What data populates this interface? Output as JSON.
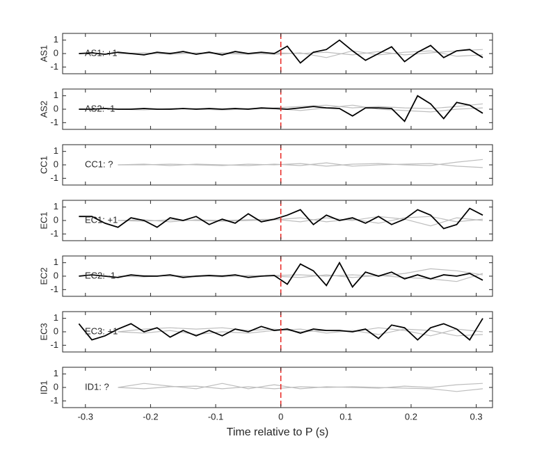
{
  "chart_data": [
    {
      "type": "line",
      "ylabel": "AS1",
      "annotation": {
        "text": "AS1: +1",
        "color": "#c0141e"
      },
      "xlim": [
        -0.335,
        0.325
      ],
      "ylim": [
        -1.5,
        1.5
      ],
      "yticks": [
        -1,
        0,
        1
      ],
      "vline": {
        "x": 0,
        "color": "#e8231f"
      },
      "series": [
        {
          "color": "#bdbdbd",
          "x": [
            -0.25,
            -0.21,
            -0.17,
            -0.13,
            -0.09,
            -0.05,
            -0.01,
            0.03,
            0.07,
            0.11,
            0.15,
            0.19,
            0.23,
            0.27,
            0.31
          ],
          "values": [
            0,
            0.05,
            -0.05,
            0.05,
            0,
            -0.05,
            0.05,
            0,
            0.1,
            -0.1,
            0.15,
            -0.1,
            0.05,
            0.2,
            0.3
          ]
        },
        {
          "color": "#bdbdbd",
          "x": [
            -0.25,
            -0.21,
            -0.17,
            -0.13,
            -0.09,
            -0.05,
            -0.01,
            0.03,
            0.07,
            0.11,
            0.15,
            0.19,
            0.23,
            0.27,
            0.31
          ],
          "values": [
            0,
            -0.05,
            0.05,
            0,
            0.05,
            0,
            -0.05,
            0.05,
            -0.3,
            0.2,
            -0.1,
            0.1,
            0.2,
            -0.2,
            -0.1
          ]
        },
        {
          "color": "#000000",
          "x": [
            -0.31,
            -0.29,
            -0.27,
            -0.25,
            -0.23,
            -0.21,
            -0.19,
            -0.17,
            -0.15,
            -0.13,
            -0.11,
            -0.09,
            -0.07,
            -0.05,
            -0.03,
            -0.01,
            0.01,
            0.03,
            0.05,
            0.07,
            0.09,
            0.11,
            0.13,
            0.15,
            0.17,
            0.19,
            0.21,
            0.23,
            0.25,
            0.27,
            0.29,
            0.31
          ],
          "values": [
            0,
            0.05,
            -0.05,
            0.1,
            0,
            -0.1,
            0.1,
            0,
            0.15,
            -0.05,
            0.1,
            -0.1,
            0.15,
            0,
            0.1,
            0,
            0.55,
            -0.7,
            0.1,
            0.3,
            1.0,
            0.2,
            -0.5,
            0,
            0.5,
            -0.6,
            0.1,
            0.6,
            -0.3,
            0.2,
            0.3,
            -0.3
          ]
        }
      ]
    },
    {
      "type": "line",
      "ylabel": "AS2",
      "annotation": {
        "text": "AS2: -1",
        "color": "#1c1ca8"
      },
      "xlim": [
        -0.335,
        0.325
      ],
      "ylim": [
        -1.5,
        1.5
      ],
      "yticks": [
        -1,
        0,
        1
      ],
      "vline": {
        "x": 0,
        "color": "#e8231f"
      },
      "series": [
        {
          "color": "#bdbdbd",
          "x": [
            -0.25,
            -0.21,
            -0.17,
            -0.13,
            -0.09,
            -0.05,
            -0.01,
            0.03,
            0.07,
            0.11,
            0.15,
            0.19,
            0.23,
            0.27,
            0.31
          ],
          "values": [
            0,
            0.05,
            0,
            0.05,
            0,
            0.05,
            0.1,
            0.2,
            0.3,
            0.1,
            0.2,
            0.1,
            0.05,
            0.2,
            0.4
          ]
        },
        {
          "color": "#bdbdbd",
          "x": [
            -0.25,
            -0.21,
            -0.17,
            -0.13,
            -0.09,
            -0.05,
            -0.01,
            0.03,
            0.07,
            0.11,
            0.15,
            0.19,
            0.23,
            0.27,
            0.31
          ],
          "values": [
            0,
            -0.05,
            0.05,
            0,
            -0.05,
            0,
            0.05,
            -0.1,
            0.1,
            0.3,
            0,
            -0.1,
            -0.2,
            0,
            0.1
          ]
        },
        {
          "color": "#000000",
          "x": [
            -0.31,
            -0.29,
            -0.27,
            -0.25,
            -0.23,
            -0.21,
            -0.19,
            -0.17,
            -0.15,
            -0.13,
            -0.11,
            -0.09,
            -0.07,
            -0.05,
            -0.03,
            -0.01,
            0.01,
            0.03,
            0.05,
            0.07,
            0.09,
            0.11,
            0.13,
            0.15,
            0.17,
            0.19,
            0.21,
            0.23,
            0.25,
            0.27,
            0.29,
            0.31
          ],
          "values": [
            0,
            0,
            0.05,
            0,
            0,
            0.05,
            0,
            0,
            0.05,
            0,
            0.05,
            0,
            0.05,
            0,
            0.1,
            0.05,
            0,
            0.1,
            0.2,
            0.1,
            0.05,
            -0.5,
            0.1,
            0.1,
            0.05,
            -0.9,
            1.0,
            0.4,
            -0.7,
            0.5,
            0.3,
            -0.3
          ]
        }
      ]
    },
    {
      "type": "line",
      "ylabel": "CC1",
      "annotation": {
        "text": "CC1: ?",
        "color": "#8c8c8c"
      },
      "xlim": [
        -0.335,
        0.325
      ],
      "ylim": [
        -1.5,
        1.5
      ],
      "yticks": [
        -1,
        0,
        1
      ],
      "vline": {
        "x": 0,
        "color": "#e8231f"
      },
      "series": [
        {
          "color": "#bdbdbd",
          "x": [
            -0.25,
            -0.21,
            -0.17,
            -0.13,
            -0.09,
            -0.05,
            -0.01,
            0.03,
            0.07,
            0.11,
            0.15,
            0.19,
            0.23,
            0.27,
            0.31
          ],
          "values": [
            0,
            0,
            0.05,
            0,
            -0.05,
            0.05,
            0,
            0.1,
            -0.1,
            0.05,
            0.1,
            0,
            -0.05,
            0.2,
            0.4
          ]
        },
        {
          "color": "#bdbdbd",
          "x": [
            -0.25,
            -0.21,
            -0.17,
            -0.13,
            -0.09,
            -0.05,
            -0.01,
            0.03,
            0.07,
            0.11,
            0.15,
            0.19,
            0.23,
            0.27,
            0.31
          ],
          "values": [
            0,
            0.05,
            -0.05,
            0.05,
            0,
            -0.05,
            0.05,
            -0.05,
            0.15,
            -0.1,
            0,
            0.05,
            0.1,
            -0.1,
            -0.2
          ]
        }
      ]
    },
    {
      "type": "line",
      "ylabel": "EC1",
      "annotation": {
        "text": "EC1: +1",
        "color": "#c0141e"
      },
      "xlim": [
        -0.335,
        0.325
      ],
      "ylim": [
        -1.5,
        1.5
      ],
      "yticks": [
        -1,
        0,
        1
      ],
      "vline": {
        "x": 0,
        "color": "#e8231f"
      },
      "series": [
        {
          "color": "#bdbdbd",
          "x": [
            -0.25,
            -0.21,
            -0.17,
            -0.13,
            -0.09,
            -0.05,
            -0.01,
            0.03,
            0.07,
            0.11,
            0.15,
            0.19,
            0.23,
            0.27,
            0.31
          ],
          "values": [
            0,
            0.05,
            -0.1,
            0.05,
            0,
            0.05,
            0.1,
            -0.1,
            0.2,
            0,
            0.3,
            0.1,
            -0.4,
            0.2,
            0
          ]
        },
        {
          "color": "#bdbdbd",
          "x": [
            -0.25,
            -0.21,
            -0.17,
            -0.13,
            -0.09,
            -0.05,
            -0.01,
            0.03,
            0.07,
            0.11,
            0.15,
            0.19,
            0.23,
            0.27,
            0.31
          ],
          "values": [
            0,
            -0.05,
            0.05,
            0,
            -0.05,
            0,
            0.05,
            0.2,
            -0.1,
            0.1,
            -0.2,
            0.2,
            0.3,
            -0.1,
            0.1
          ]
        },
        {
          "color": "#000000",
          "x": [
            -0.31,
            -0.29,
            -0.27,
            -0.25,
            -0.23,
            -0.21,
            -0.19,
            -0.17,
            -0.15,
            -0.13,
            -0.11,
            -0.09,
            -0.07,
            -0.05,
            -0.03,
            -0.01,
            0.01,
            0.03,
            0.05,
            0.07,
            0.09,
            0.11,
            0.13,
            0.15,
            0.17,
            0.19,
            0.21,
            0.23,
            0.25,
            0.27,
            0.29,
            0.31
          ],
          "values": [
            0.3,
            0.3,
            -0.2,
            -0.5,
            0.2,
            0,
            -0.5,
            0.2,
            0,
            0.3,
            -0.3,
            0.1,
            -0.2,
            0.5,
            -0.1,
            0.1,
            0.4,
            0.8,
            -0.3,
            0.4,
            0,
            0.2,
            -0.2,
            0.3,
            -0.3,
            0.1,
            0.8,
            0.4,
            -0.6,
            -0.3,
            0.9,
            0.4
          ]
        }
      ]
    },
    {
      "type": "line",
      "ylabel": "EC2",
      "annotation": {
        "text": "EC2: -1",
        "color": "#1c1ca8"
      },
      "xlim": [
        -0.335,
        0.325
      ],
      "ylim": [
        -1.5,
        1.5
      ],
      "yticks": [
        -1,
        0,
        1
      ],
      "vline": {
        "x": 0,
        "color": "#e8231f"
      },
      "series": [
        {
          "color": "#bdbdbd",
          "x": [
            -0.25,
            -0.21,
            -0.17,
            -0.13,
            -0.09,
            -0.05,
            -0.01,
            0.03,
            0.07,
            0.11,
            0.15,
            0.19,
            0.23,
            0.27,
            0.31
          ],
          "values": [
            0,
            0.05,
            0,
            -0.05,
            0.05,
            0,
            0.05,
            0.1,
            0,
            0.1,
            0,
            0.2,
            0.55,
            0.4,
            0.1
          ]
        },
        {
          "color": "#bdbdbd",
          "x": [
            -0.25,
            -0.21,
            -0.17,
            -0.13,
            -0.09,
            -0.05,
            -0.01,
            0.03,
            0.07,
            0.11,
            0.15,
            0.19,
            0.23,
            0.27,
            0.31
          ],
          "values": [
            0,
            -0.05,
            0.05,
            0,
            -0.05,
            0.05,
            0,
            -0.1,
            0.1,
            -0.1,
            0.05,
            -0.1,
            -0.2,
            -0.4,
            0.2
          ]
        },
        {
          "color": "#000000",
          "x": [
            -0.31,
            -0.29,
            -0.27,
            -0.25,
            -0.23,
            -0.21,
            -0.19,
            -0.17,
            -0.15,
            -0.13,
            -0.11,
            -0.09,
            -0.07,
            -0.05,
            -0.03,
            -0.01,
            0.01,
            0.03,
            0.05,
            0.07,
            0.09,
            0.11,
            0.13,
            0.15,
            0.17,
            0.19,
            0.21,
            0.23,
            0.25,
            0.27,
            0.29,
            0.31
          ],
          "values": [
            0,
            0.1,
            0,
            -0.1,
            0.1,
            0,
            0,
            0.1,
            -0.1,
            0,
            0.05,
            0,
            0.1,
            -0.1,
            0,
            0.05,
            -0.6,
            0.9,
            0.4,
            -0.7,
            1.0,
            -0.8,
            0.3,
            0,
            0.3,
            -0.2,
            0.1,
            -0.2,
            0.1,
            0,
            0.2,
            -0.3
          ]
        }
      ]
    },
    {
      "type": "line",
      "ylabel": "EC3",
      "annotation": {
        "text": "EC3: +1",
        "color": "#c0141e"
      },
      "xlim": [
        -0.335,
        0.325
      ],
      "ylim": [
        -1.5,
        1.5
      ],
      "yticks": [
        -1,
        0,
        1
      ],
      "vline": {
        "x": 0,
        "color": "#e8231f"
      },
      "series": [
        {
          "color": "#bdbdbd",
          "x": [
            -0.25,
            -0.21,
            -0.17,
            -0.13,
            -0.09,
            -0.05,
            -0.01,
            0.03,
            0.07,
            0.11,
            0.15,
            0.19,
            0.23,
            0.27,
            0.31
          ],
          "values": [
            0,
            0.2,
            0.3,
            0.2,
            0.3,
            0.1,
            0.2,
            0,
            0.1,
            0,
            0.3,
            0.1,
            -0.3,
            0.2,
            0
          ]
        },
        {
          "color": "#bdbdbd",
          "x": [
            -0.25,
            -0.21,
            -0.17,
            -0.13,
            -0.09,
            -0.05,
            -0.01,
            0.03,
            0.07,
            0.11,
            0.15,
            0.19,
            0.23,
            0.27,
            0.31
          ],
          "values": [
            0,
            -0.1,
            0.1,
            -0.2,
            0,
            -0.1,
            0.1,
            0.2,
            -0.1,
            0.1,
            -0.2,
            0.2,
            0.1,
            -0.3,
            -0.2
          ]
        },
        {
          "color": "#000000",
          "x": [
            -0.31,
            -0.29,
            -0.27,
            -0.25,
            -0.23,
            -0.21,
            -0.19,
            -0.17,
            -0.15,
            -0.13,
            -0.11,
            -0.09,
            -0.07,
            -0.05,
            -0.03,
            -0.01,
            0.01,
            0.03,
            0.05,
            0.07,
            0.09,
            0.11,
            0.13,
            0.15,
            0.17,
            0.19,
            0.21,
            0.23,
            0.25,
            0.27,
            0.29,
            0.31
          ],
          "values": [
            0.6,
            -0.6,
            -0.3,
            0.2,
            0.6,
            0,
            0.3,
            -0.4,
            0.1,
            -0.3,
            0.1,
            -0.3,
            0.2,
            0,
            0.4,
            0.1,
            0.2,
            -0.1,
            0.2,
            0.1,
            0.1,
            0,
            0.2,
            -0.5,
            0.5,
            0.3,
            -0.6,
            0.3,
            0.6,
            0.2,
            -0.6,
            1.0
          ]
        }
      ]
    },
    {
      "type": "line",
      "ylabel": "ID1",
      "annotation": {
        "text": "ID1: ?",
        "color": "#8c8c8c"
      },
      "xlabel": "Time relative to P (s)",
      "xlim": [
        -0.335,
        0.325
      ],
      "ylim": [
        -1.5,
        1.5
      ],
      "yticks": [
        -1,
        0,
        1
      ],
      "xticks": [
        -0.3,
        -0.2,
        -0.1,
        0,
        0.1,
        0.2,
        0.3
      ],
      "vline": {
        "x": 0,
        "color": "#e8231f"
      },
      "series": [
        {
          "color": "#bdbdbd",
          "x": [
            -0.25,
            -0.21,
            -0.17,
            -0.13,
            -0.09,
            -0.05,
            -0.01,
            0.03,
            0.07,
            0.11,
            0.15,
            0.19,
            0.23,
            0.27,
            0.31
          ],
          "values": [
            0,
            0.3,
            0.1,
            -0.1,
            0.3,
            -0.1,
            0.2,
            -0.1,
            0.05,
            0,
            -0.05,
            0.1,
            0,
            0.2,
            0.3
          ]
        },
        {
          "color": "#bdbdbd",
          "x": [
            -0.25,
            -0.21,
            -0.17,
            -0.13,
            -0.09,
            -0.05,
            -0.01,
            0.03,
            0.07,
            0.11,
            0.15,
            0.19,
            0.23,
            0.27,
            0.31
          ],
          "values": [
            0,
            -0.1,
            0.05,
            0.1,
            -0.1,
            0.05,
            -0.1,
            0.05,
            0,
            0.05,
            0,
            -0.05,
            -0.1,
            -0.3,
            -0.1
          ]
        }
      ]
    }
  ]
}
